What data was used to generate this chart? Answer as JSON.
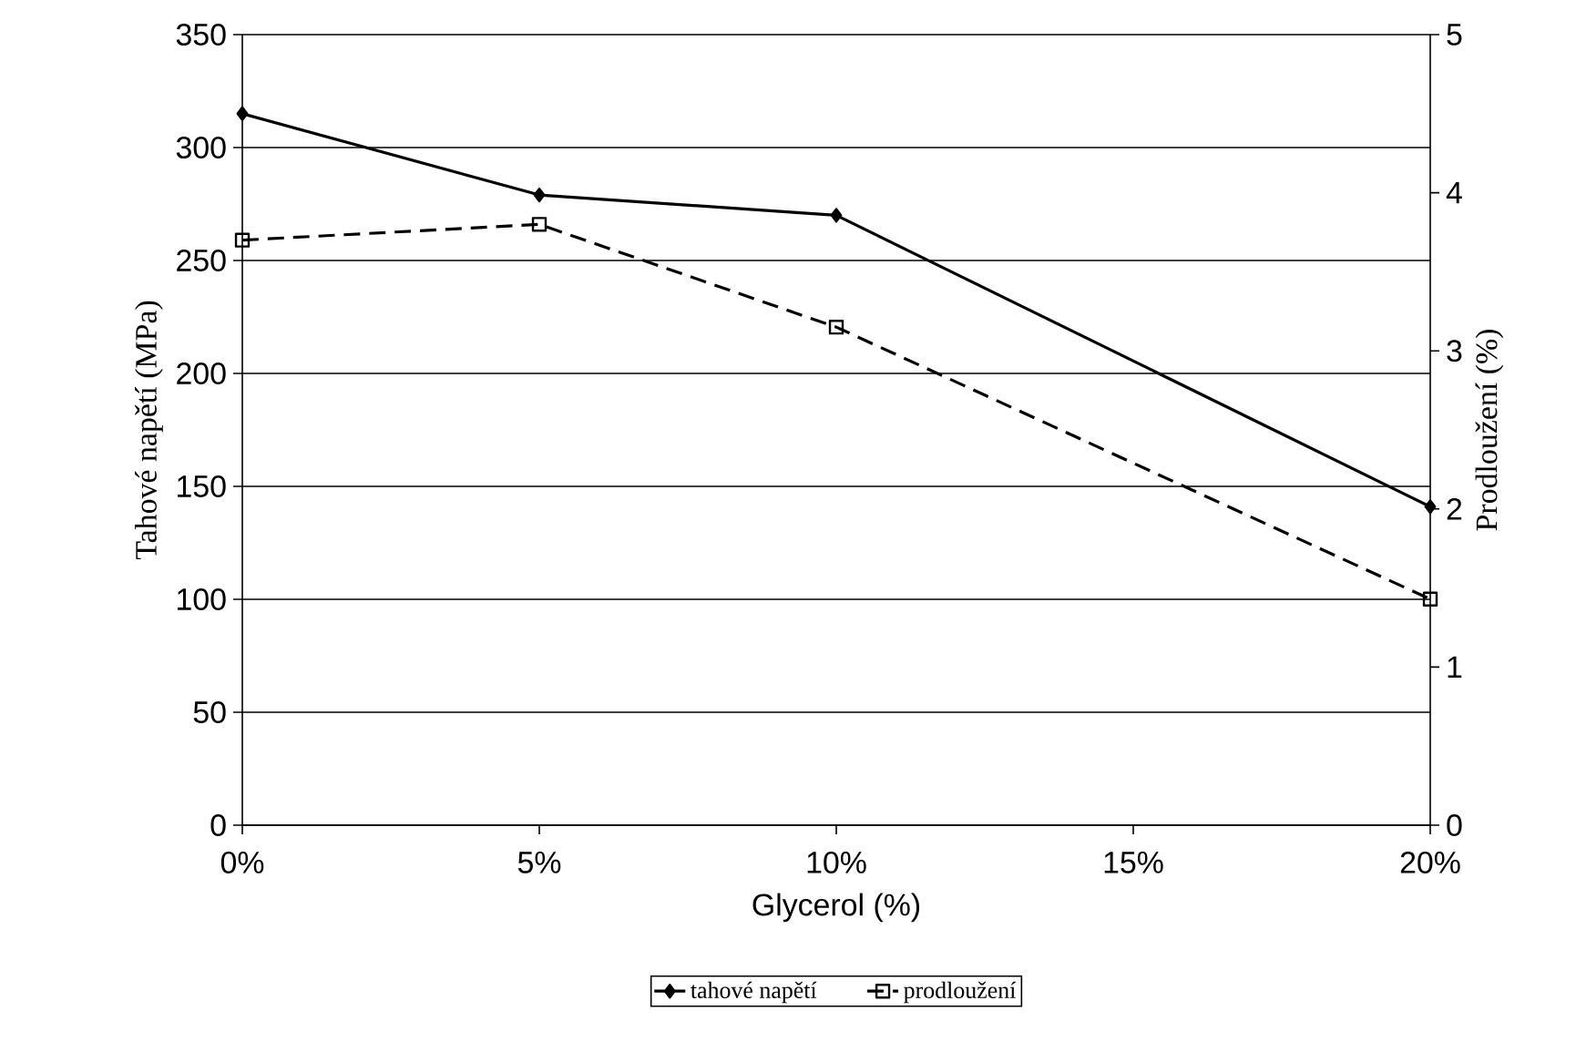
{
  "chart_data": {
    "type": "line",
    "xlabel": "Glycerol (%)",
    "ylabel": "Tahové napětí (MPa)",
    "y2label": "Prodloužení (%)",
    "x": [
      0,
      5,
      10,
      20
    ],
    "series": [
      {
        "name": "tahové napětí",
        "color": "#000000",
        "values": [
          315,
          279,
          270,
          141
        ],
        "marker": "diamond",
        "line_style": "solid"
      },
      {
        "name": "prodloužení",
        "color": "#000000",
        "values": [
          3.7,
          3.8,
          3.15,
          1.43
        ],
        "marker": "square",
        "line_style": "dashed",
        "axis": "y2"
      }
    ],
    "xlim": [
      0,
      20
    ],
    "xticks": [
      {
        "value": 0,
        "label": "0%"
      },
      {
        "value": 5,
        "label": "5%"
      },
      {
        "value": 10,
        "label": "10%"
      },
      {
        "value": 15,
        "label": "15%"
      },
      {
        "value": 20,
        "label": "20%"
      }
    ],
    "ylim": [
      0,
      350
    ],
    "yticks": [
      0,
      50,
      100,
      150,
      200,
      250,
      300,
      350
    ],
    "y2lim": [
      0,
      5
    ],
    "y2ticks": [
      0,
      1,
      2,
      3,
      4,
      5
    ],
    "grid": "y",
    "legend": "bottom"
  }
}
